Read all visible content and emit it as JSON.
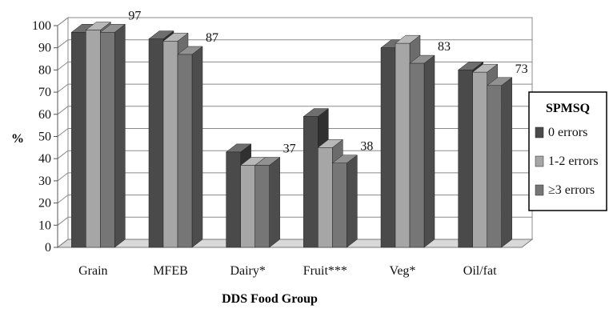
{
  "chart_data": {
    "type": "bar",
    "style": "3d-clustered-column",
    "title": "",
    "xlabel": "DDS Food Group",
    "ylabel": "%",
    "ylim": [
      0,
      100
    ],
    "ytick_step": 10,
    "grid": true,
    "legend": {
      "title": "SPMSQ",
      "placement": "right"
    },
    "categories": [
      "Grain",
      "MFEB",
      "Dairy*",
      "Fruit***",
      "Veg*",
      "Oil/fat"
    ],
    "series": [
      {
        "name": "0 errors",
        "color": "#4a4a4a",
        "values": [
          97,
          94,
          43,
          59,
          90,
          80
        ]
      },
      {
        "name": "1-2 errors",
        "color": "#a6a6a6",
        "values": [
          98,
          93,
          37,
          45,
          92,
          79
        ]
      },
      {
        "name": "≥3 errors",
        "color": "#767676",
        "values": [
          97,
          87,
          37,
          38,
          83,
          73
        ]
      }
    ],
    "data_labels": [
      {
        "category_index": 0,
        "series_index": 2,
        "text": "97"
      },
      {
        "category_index": 1,
        "series_index": 2,
        "text": "87"
      },
      {
        "category_index": 2,
        "series_index": 2,
        "text": "37"
      },
      {
        "category_index": 3,
        "series_index": 2,
        "text": "38"
      },
      {
        "category_index": 4,
        "series_index": 2,
        "text": "83"
      },
      {
        "category_index": 5,
        "series_index": 2,
        "text": "73"
      }
    ]
  }
}
